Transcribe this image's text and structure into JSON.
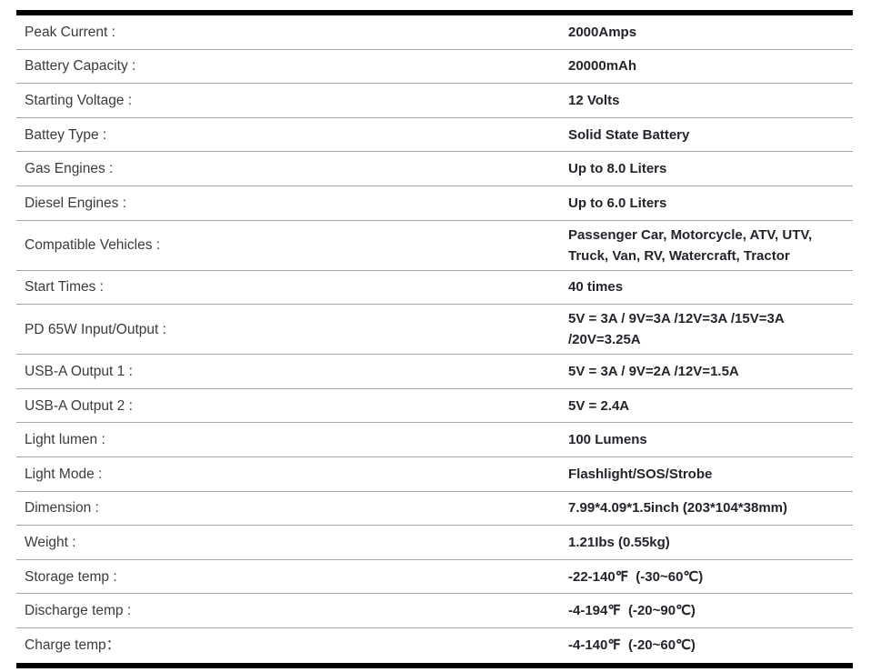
{
  "table": {
    "rows": [
      {
        "label": "Peak Current :",
        "value": "2000Amps"
      },
      {
        "label": "Battery Capacity :",
        "value": "20000mAh"
      },
      {
        "label": "Starting Voltage :",
        "value": "12 Volts"
      },
      {
        "label": "Battey Type :",
        "value": "Solid State Battery"
      },
      {
        "label": "Gas Engines :",
        "value": "Up to 8.0 Liters"
      },
      {
        "label": "Diesel Engines :",
        "value": "Up to 6.0 Liters"
      },
      {
        "label": "Compatible Vehicles :",
        "value": "Passenger Car, Motorcycle, ATV, UTV,\nTruck, Van, RV, Watercraft, Tractor"
      },
      {
        "label": "Start Times :",
        "value": "40 times"
      },
      {
        "label": "PD 65W Input/Output :",
        "value": "5V = 3A / 9V=3A /12V=3A /15V=3A\n/20V=3.25A"
      },
      {
        "label": "USB-A Output 1 :",
        "value": "5V = 3A / 9V=2A /12V=1.5A"
      },
      {
        "label": "USB-A Output 2 :",
        "value": "5V = 2.4A"
      },
      {
        "label": "Light lumen :",
        "value": "100 Lumens"
      },
      {
        "label": "Light Mode :",
        "value": "Flashlight/SOS/Strobe"
      },
      {
        "label": "Dimension :",
        "value": "7.99*4.09*1.5inch (203*104*38mm)"
      },
      {
        "label": "Weight :",
        "value": "1.21Ibs (0.55kg)"
      },
      {
        "label": "Storage temp :",
        "value": "-22-140℉  (-30~60℃)"
      },
      {
        "label": "Discharge temp :",
        "value": "-4-194℉  (-20~90℃)"
      },
      {
        "label": "Charge temp：",
        "value": "-4-140℉  (-20~60℃)"
      }
    ]
  },
  "colors": {
    "border": "#000000",
    "separator": "#a8a8a8",
    "label_text": "#3b3b3b",
    "value_text": "#23252b"
  }
}
